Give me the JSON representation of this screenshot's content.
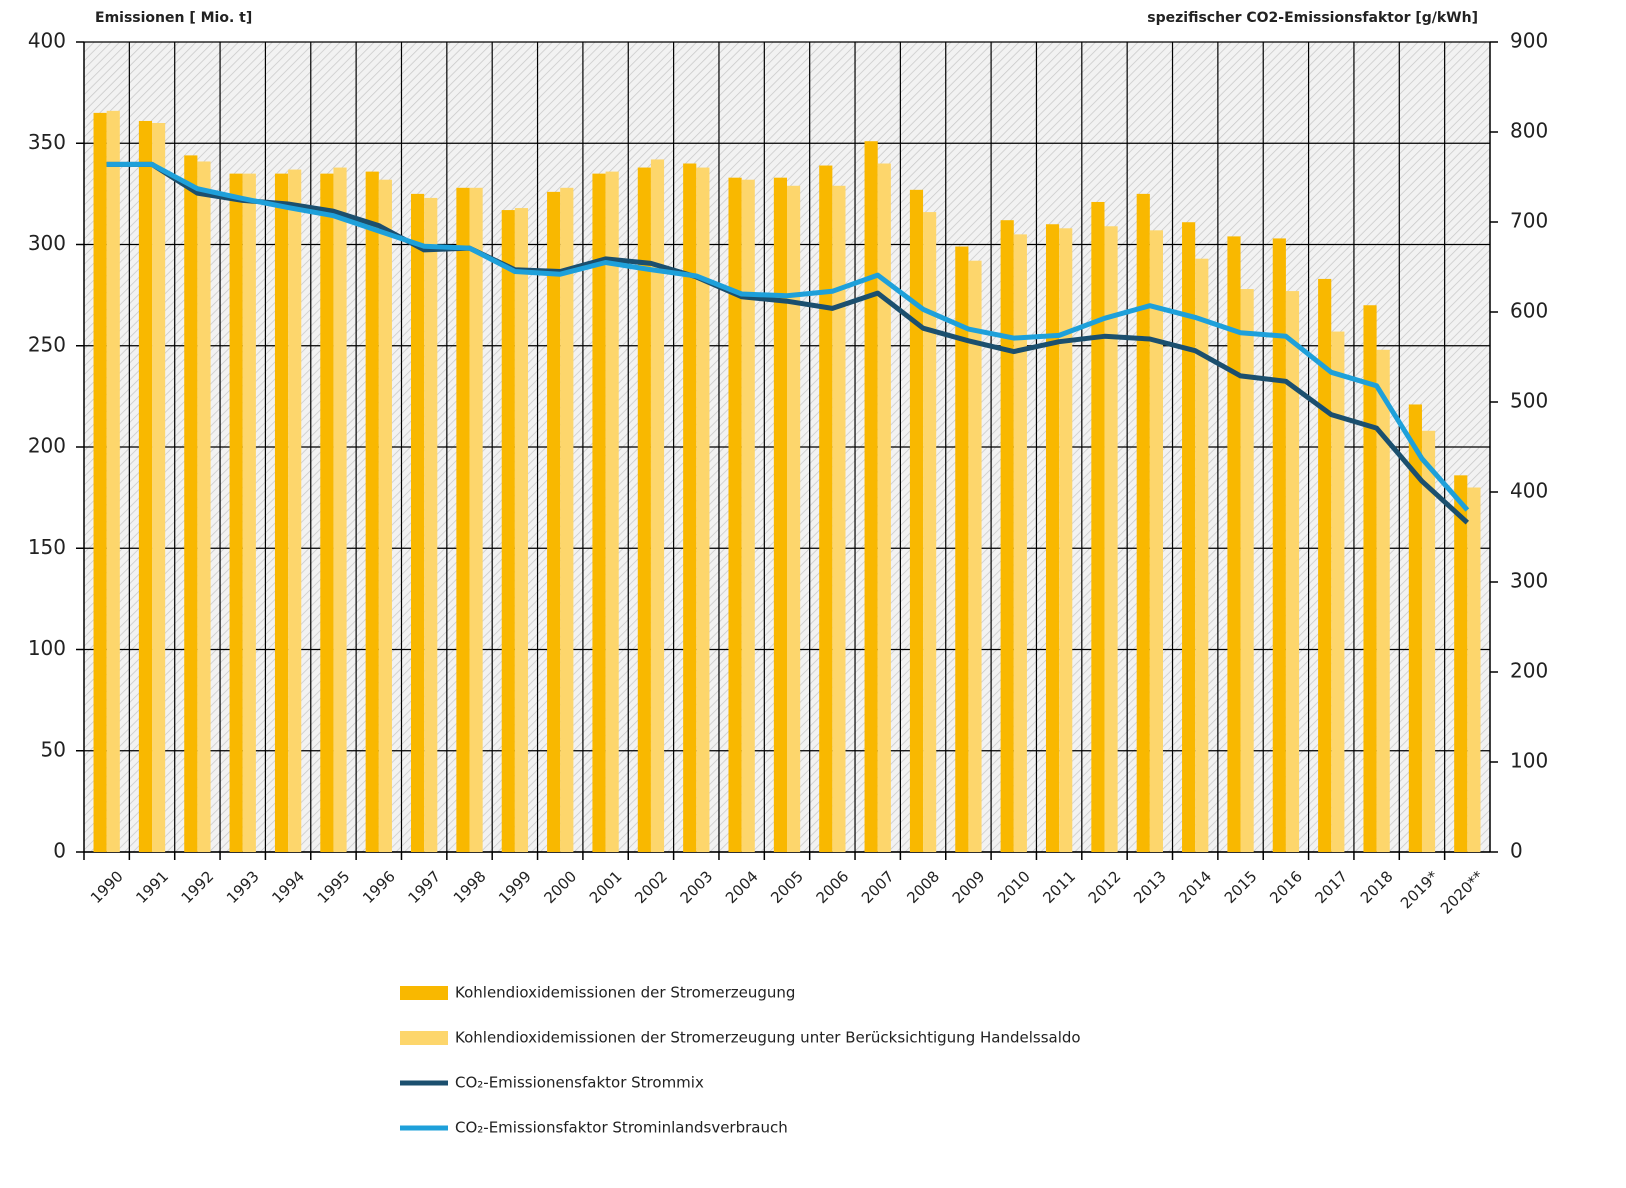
{
  "chart_data": {
    "type": "bar_line",
    "ylabel": "Emissionen [ Mio. t]",
    "y2label": "spezifischer CO2-Emissionsfaktor [g/kWh]",
    "categories": [
      "1990",
      "1991",
      "1992",
      "1993",
      "1994",
      "1995",
      "1996",
      "1997",
      "1998",
      "1999",
      "2000",
      "2001",
      "2002",
      "2003",
      "2004",
      "2005",
      "2006",
      "2007",
      "2008",
      "2009",
      "2010",
      "2011",
      "2012",
      "2013",
      "2014",
      "2015",
      "2016",
      "2017",
      "2018",
      "2019*",
      "2020**"
    ],
    "series": [
      {
        "name": "Kohlendioxidemissionen der Stromerzeugung",
        "type": "bar",
        "color": "#f9b800",
        "values": [
          365,
          361,
          344,
          335,
          335,
          335,
          336,
          325,
          328,
          317,
          326,
          335,
          338,
          340,
          333,
          333,
          339,
          351,
          327,
          299,
          312,
          310,
          321,
          325,
          311,
          304,
          303,
          283,
          270,
          221,
          186
        ]
      },
      {
        "name": "Kohlendioxidemissionen der Stromerzeugung unter Berücksichtigung Handelssaldo",
        "type": "bar",
        "color": "#fdd66c",
        "values": [
          366,
          360,
          341,
          335,
          337,
          338,
          332,
          323,
          328,
          318,
          328,
          336,
          342,
          338,
          332,
          329,
          329,
          340,
          316,
          292,
          305,
          308,
          309,
          307,
          293,
          278,
          277,
          257,
          248,
          208,
          180
        ]
      },
      {
        "name": "CO₂-Emissionensfaktor Strommix",
        "type": "line",
        "axis": "y2",
        "color": "#1b4f6e",
        "values": [
          764,
          764,
          732,
          724,
          720,
          712,
          696,
          669,
          671,
          647,
          645,
          659,
          654,
          639,
          617,
          612,
          604,
          621,
          582,
          568,
          556,
          567,
          573,
          570,
          557,
          529,
          523,
          486,
          471,
          412,
          366
        ]
      },
      {
        "name": "CO₂-Emissionsfaktor Strominlandsverbrauch",
        "type": "line",
        "axis": "y2",
        "color": "#1ea0da",
        "values": [
          764,
          764,
          737,
          726,
          716,
          707,
          690,
          673,
          671,
          645,
          642,
          655,
          647,
          640,
          620,
          618,
          623,
          641,
          603,
          581,
          571,
          574,
          593,
          607,
          594,
          577,
          573,
          533,
          518,
          437,
          380
        ]
      }
    ],
    "ylim": [
      0,
      400
    ],
    "yticks": [
      0,
      50,
      100,
      150,
      200,
      250,
      300,
      350,
      400
    ],
    "y2lim": [
      0,
      900
    ],
    "y2ticks": [
      0,
      100,
      200,
      300,
      400,
      500,
      600,
      700,
      800,
      900
    ],
    "grid": true
  }
}
